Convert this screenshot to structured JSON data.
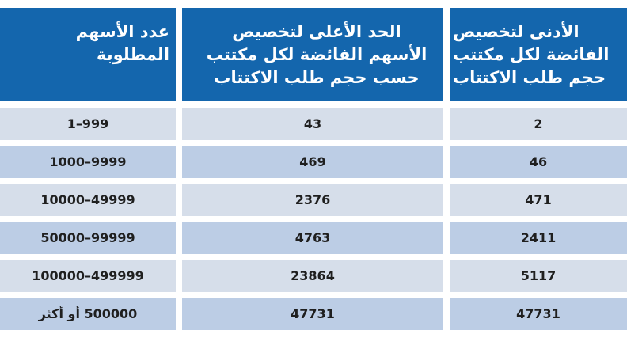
{
  "table": {
    "headers": [
      {
        "lines": [
          "عدد الأسهم",
          "المطلوبة"
        ]
      },
      {
        "lines": [
          "الحد الأعلى لتخصيص",
          "الأسهم الفائضة لكل مكتتب",
          "حسب حجم طلب الاكتتاب"
        ]
      },
      {
        "lines": [
          "الأدنى لتخصيص",
          "الفائضة لكل مكتتب",
          "حجم طلب الاكتتاب"
        ]
      }
    ],
    "rows": [
      {
        "shares": "1–999",
        "max_alloc": "43",
        "min_alloc": "2"
      },
      {
        "shares": "1000–9999",
        "max_alloc": "469",
        "min_alloc": "46"
      },
      {
        "shares": "10000–49999",
        "max_alloc": "2376",
        "min_alloc": "471"
      },
      {
        "shares": "50000–99999",
        "max_alloc": "4763",
        "min_alloc": "2411"
      },
      {
        "shares": "100000–499999",
        "max_alloc": "23864",
        "min_alloc": "5117"
      },
      {
        "shares": "500000 أو أكثر",
        "max_alloc": "47731",
        "min_alloc": "47731"
      }
    ]
  }
}
